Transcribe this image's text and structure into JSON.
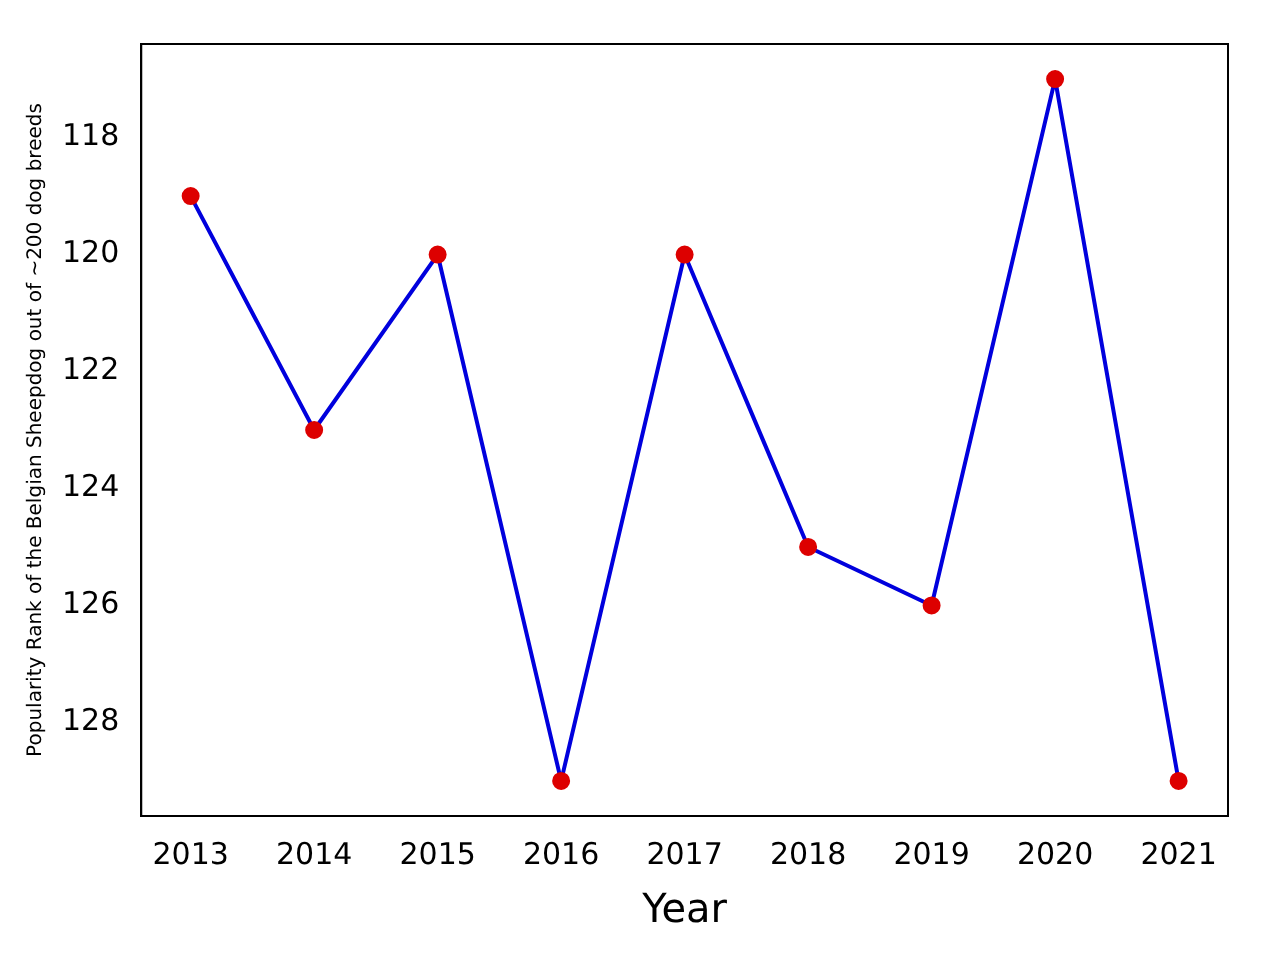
{
  "chart_data": {
    "type": "line",
    "xlabel": "Year",
    "ylabel": "Popularity Rank of the Belgian Sheepdog out of ~200 dog breeds",
    "x": [
      2013,
      2014,
      2015,
      2016,
      2017,
      2018,
      2019,
      2020,
      2021
    ],
    "series": [
      {
        "color": "#0000dd",
        "colors": [
          "#dd0000",
          "#dd0000",
          "#dd0000",
          "#dd0000",
          "#dd0000",
          "#dd0000",
          "#dd0000",
          "#dd0000",
          "#dd0000"
        ],
        "values": [
          119,
          123,
          120,
          129,
          120,
          125,
          126,
          117,
          129
        ]
      }
    ],
    "xlim": [
      2012.6,
      2021.4
    ],
    "xticks": [
      2013,
      2014,
      2015,
      2016,
      2017,
      2018,
      2019,
      2020,
      2021
    ],
    "ylim": [
      129.6,
      116.4
    ],
    "yticks": [
      118,
      120,
      122,
      124,
      126,
      128
    ],
    "grid": false,
    "legend": false,
    "marker": "circle",
    "line_style": "solid"
  }
}
